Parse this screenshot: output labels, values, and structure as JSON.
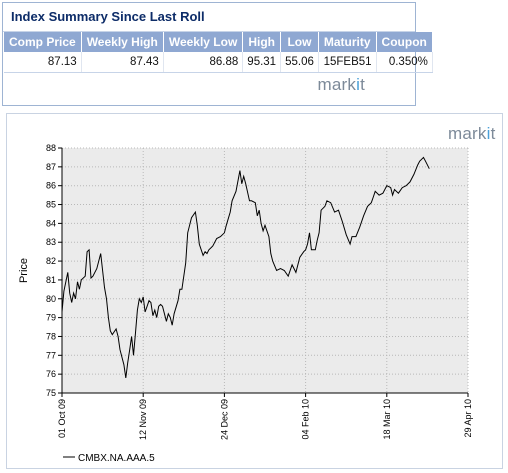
{
  "summary": {
    "title": "Index Summary Since Last Roll",
    "columns": [
      "Comp Price",
      "Weekly High",
      "Weekly Low",
      "High",
      "Low",
      "Maturity",
      "Coupon"
    ],
    "row": [
      "87.13",
      "87.43",
      "86.88",
      "95.31",
      "55.06",
      "15FEB51",
      "0.350%"
    ]
  },
  "logo": {
    "brand": "markit"
  },
  "colors": {
    "header_bg": "#8fa8d2",
    "title": "#0d2c68",
    "line": "#000000",
    "plot_bg": "#ebebeb",
    "logo_text": "#7d8a99",
    "logo_accent": "#4aa0d9"
  },
  "chart_data": {
    "type": "line",
    "ylabel": "Price",
    "xlabel": "",
    "ylim": [
      75,
      88
    ],
    "yticks": [
      75,
      76,
      77,
      78,
      79,
      80,
      81,
      82,
      83,
      84,
      85,
      86,
      87,
      88
    ],
    "x_range": [
      "2009-10-01",
      "2010-04-29"
    ],
    "xticks": [
      "01 Oct 09",
      "12 Nov 09",
      "24 Dec 09",
      "04 Feb 10",
      "18 Mar 10",
      "29 Apr 10"
    ],
    "grid": true,
    "legend_position": "bottom-left",
    "series": [
      {
        "name": "CMBX.NA.AAA.5",
        "x": [
          "2009-10-01",
          "2009-10-02",
          "2009-10-04",
          "2009-10-05",
          "2009-10-06",
          "2009-10-07",
          "2009-10-08",
          "2009-10-09",
          "2009-10-10",
          "2009-10-11",
          "2009-10-13",
          "2009-10-14",
          "2009-10-15",
          "2009-10-16",
          "2009-10-17",
          "2009-10-19",
          "2009-10-21",
          "2009-10-22",
          "2009-10-23",
          "2009-10-24",
          "2009-10-25",
          "2009-10-26",
          "2009-10-27",
          "2009-10-29",
          "2009-10-30",
          "2009-10-31",
          "2009-11-02",
          "2009-11-03",
          "2009-11-04",
          "2009-11-05",
          "2009-11-06",
          "2009-11-07",
          "2009-11-08",
          "2009-11-09",
          "2009-11-10",
          "2009-11-11",
          "2009-11-12",
          "2009-11-13",
          "2009-11-14",
          "2009-11-15",
          "2009-11-16",
          "2009-11-17",
          "2009-11-18",
          "2009-11-19",
          "2009-11-20",
          "2009-11-21",
          "2009-11-22",
          "2009-11-24",
          "2009-11-25",
          "2009-11-26",
          "2009-11-27",
          "2009-11-28",
          "2009-11-30",
          "2009-12-01",
          "2009-12-02",
          "2009-12-04",
          "2009-12-05",
          "2009-12-07",
          "2009-12-09",
          "2009-12-10",
          "2009-12-11",
          "2009-12-13",
          "2009-12-14",
          "2009-12-15",
          "2009-12-16",
          "2009-12-17",
          "2009-12-18",
          "2009-12-20",
          "2009-12-22",
          "2009-12-24",
          "2009-12-25",
          "2009-12-27",
          "2009-12-28",
          "2009-12-30",
          "2010-01-01",
          "2010-01-02",
          "2010-01-03",
          "2010-01-04",
          "2010-01-06",
          "2010-01-07",
          "2010-01-09",
          "2010-01-10",
          "2010-01-11",
          "2010-01-12",
          "2010-01-13",
          "2010-01-14",
          "2010-01-16",
          "2010-01-17",
          "2010-01-18",
          "2010-01-20",
          "2010-01-22",
          "2010-01-24",
          "2010-01-26",
          "2010-01-28",
          "2010-01-30",
          "2010-02-01",
          "2010-02-03",
          "2010-02-04",
          "2010-02-05",
          "2010-02-06",
          "2010-02-07",
          "2010-02-09",
          "2010-02-10",
          "2010-02-11",
          "2010-02-12",
          "2010-02-14",
          "2010-02-15",
          "2010-02-17",
          "2010-02-19",
          "2010-02-21",
          "2010-02-23",
          "2010-02-25",
          "2010-02-27",
          "2010-02-28",
          "2010-03-02",
          "2010-03-04",
          "2010-03-06",
          "2010-03-08",
          "2010-03-10",
          "2010-03-11",
          "2010-03-12",
          "2010-03-14",
          "2010-03-16",
          "2010-03-18",
          "2010-03-20",
          "2010-03-21",
          "2010-03-22",
          "2010-03-24",
          "2010-03-26",
          "2010-03-28",
          "2010-03-30",
          "2010-04-01",
          "2010-04-03",
          "2010-04-04",
          "2010-04-06",
          "2010-04-07",
          "2010-04-09"
        ],
        "values": [
          79.3,
          80.4,
          81.4,
          80.3,
          79.8,
          80.3,
          80.0,
          80.9,
          80.5,
          81.0,
          81.2,
          82.5,
          82.6,
          81.1,
          81.2,
          81.6,
          82.4,
          81.5,
          80.6,
          80.0,
          79.0,
          78.3,
          78.1,
          78.4,
          78.0,
          77.3,
          76.5,
          75.8,
          76.6,
          77.3,
          78.0,
          77.0,
          78.2,
          79.4,
          80.0,
          79.8,
          80.1,
          79.3,
          79.6,
          79.9,
          79.8,
          79.1,
          79.4,
          79.0,
          79.6,
          79.7,
          79.6,
          78.8,
          79.2,
          79.0,
          78.6,
          79.2,
          79.9,
          80.5,
          80.5,
          81.9,
          83.5,
          84.3,
          84.6,
          83.9,
          82.9,
          82.3,
          82.5,
          82.4,
          82.6,
          82.7,
          82.8,
          83.2,
          83.3,
          83.5,
          83.9,
          84.6,
          85.2,
          85.7,
          86.8,
          86.1,
          86.5,
          86.1,
          85.2,
          85.2,
          85.1,
          84.4,
          84.7,
          84.0,
          83.6,
          83.9,
          83.3,
          82.4,
          82.0,
          81.5,
          81.6,
          81.5,
          81.2,
          81.8,
          81.4,
          82.2,
          82.5,
          82.6,
          82.9,
          83.5,
          82.6,
          82.6,
          83.1,
          83.5,
          84.7,
          84.9,
          85.2,
          85.1,
          84.6,
          84.7,
          84.1,
          83.4,
          82.9,
          83.3,
          83.3,
          83.8,
          84.4,
          84.9,
          85.1,
          85.4,
          85.7,
          85.5,
          85.6,
          86.0,
          85.9,
          85.5,
          85.8,
          85.6,
          85.9,
          86.0,
          86.2,
          86.6,
          87.1,
          87.3,
          87.5,
          87.3,
          86.9
        ]
      }
    ]
  }
}
